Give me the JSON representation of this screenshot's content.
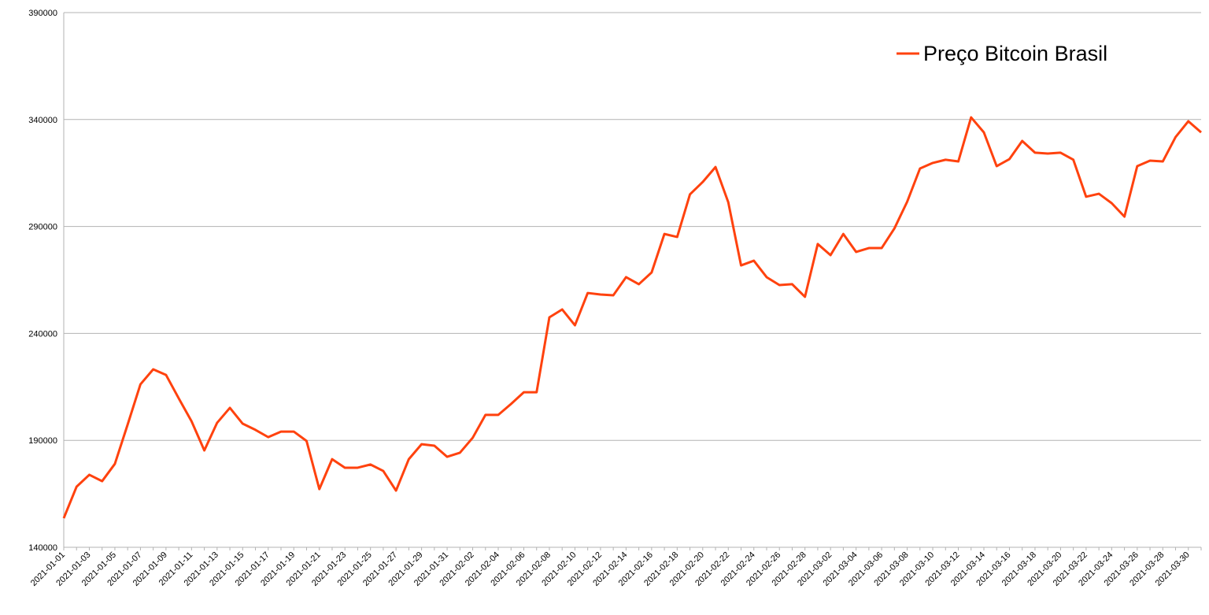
{
  "chart_data": {
    "type": "line",
    "categories": [
      "2021-01-01",
      null,
      "2021-01-03",
      null,
      "2021-01-05",
      null,
      "2021-01-07",
      null,
      "2021-01-09",
      null,
      "2021-01-11",
      null,
      "2021-01-13",
      null,
      "2021-01-15",
      null,
      "2021-01-17",
      null,
      "2021-01-19",
      null,
      "2021-01-21",
      null,
      "2021-01-23",
      null,
      "2021-01-25",
      null,
      "2021-01-27",
      null,
      "2021-01-29",
      null,
      "2021-01-31",
      null,
      "2021-02-02",
      null,
      "2021-02-04",
      null,
      "2021-02-06",
      null,
      "2021-02-08",
      null,
      "2021-02-10",
      null,
      "2021-02-12",
      null,
      "2021-02-14",
      null,
      "2021-02-16",
      null,
      "2021-02-18",
      null,
      "2021-02-20",
      null,
      "2021-02-22",
      null,
      "2021-02-24",
      null,
      "2021-02-26",
      null,
      "2021-02-28",
      null,
      "2021-03-02",
      null,
      "2021-03-04",
      null,
      "2021-03-06",
      null,
      "2021-03-08",
      null,
      "2021-03-10",
      null,
      "2021-03-12",
      null,
      "2021-03-14",
      null,
      "2021-03-16",
      null,
      "2021-03-18",
      null,
      "2021-03-20",
      null,
      "2021-03-22",
      null,
      "2021-03-24",
      null,
      "2021-03-26",
      null,
      "2021-03-28",
      null,
      "2021-03-30",
      null
    ],
    "series": [
      {
        "name": "Preço Bitcoin Brasil",
        "color": "#ff420e",
        "values": [
          153600,
          168300,
          173900,
          170900,
          179000,
          197400,
          216200,
          223200,
          220600,
          209600,
          198900,
          185300,
          198200,
          205200,
          197800,
          194900,
          191500,
          194100,
          194100,
          189700,
          167200,
          181200,
          177200,
          177200,
          178700,
          175700,
          166500,
          181200,
          188200,
          187500,
          182300,
          184200,
          191200,
          201900,
          201900,
          207000,
          212500,
          212500,
          247500,
          251200,
          243800,
          258900,
          258200,
          257800,
          266300,
          263000,
          268500,
          286500,
          285100,
          305000,
          310800,
          317800,
          301300,
          271800,
          274000,
          266300,
          262600,
          263000,
          257100,
          281800,
          276600,
          286500,
          278100,
          279900,
          279900,
          289100,
          301600,
          317100,
          319700,
          321200,
          320400,
          341000,
          334000,
          318200,
          321500,
          330000,
          324500,
          324100,
          324500,
          321200,
          303900,
          305300,
          300900,
          294600,
          318200,
          320800,
          320400,
          331800,
          339200,
          334000
        ]
      }
    ],
    "ylim": [
      140000,
      390000
    ],
    "yticks": [
      140000,
      190000,
      240000,
      290000,
      340000,
      390000
    ],
    "grid": true,
    "legend": "upper right"
  }
}
